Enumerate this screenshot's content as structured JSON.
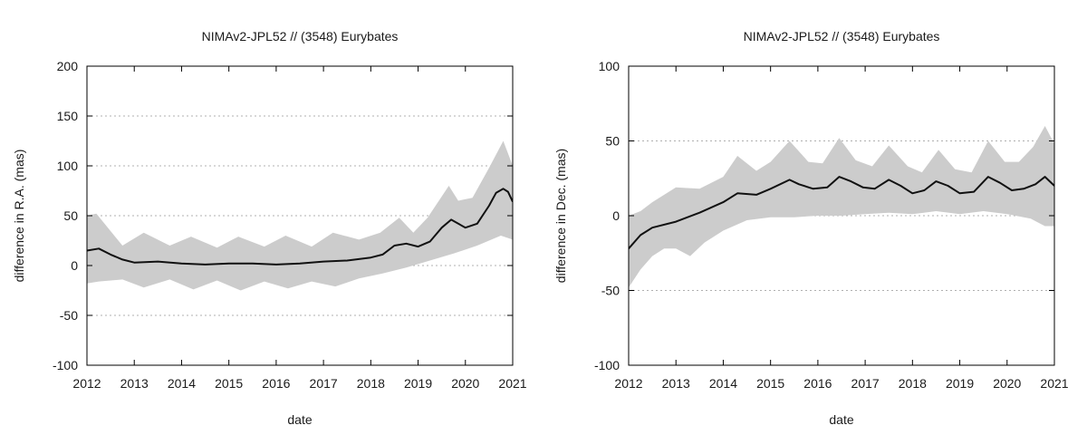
{
  "chart_data": [
    {
      "type": "area",
      "title": "NIMAv2-JPL52 // (3548) Eurybates",
      "xlabel": "date",
      "ylabel": "difference in R.A. (mas)",
      "xlim": [
        2012,
        2021
      ],
      "ylim": [
        -100,
        200
      ],
      "xticks": [
        2012,
        2013,
        2014,
        2015,
        2016,
        2017,
        2018,
        2019,
        2020,
        2021
      ],
      "yticks": [
        -100,
        -50,
        0,
        50,
        100,
        150,
        200
      ],
      "grid": "horizontal dotted",
      "legend": "none",
      "colors": {
        "band": "#cccccc",
        "line": "#111111",
        "grid": "#b0b0b0"
      },
      "series": [
        {
          "role": "line",
          "x": [
            2012.0,
            2012.25,
            2012.5,
            2012.75,
            2013.0,
            2013.5,
            2014.0,
            2014.5,
            2015.0,
            2015.5,
            2016.0,
            2016.5,
            2017.0,
            2017.5,
            2018.0,
            2018.25,
            2018.5,
            2018.75,
            2019.0,
            2019.25,
            2019.5,
            2019.7,
            2019.85,
            2020.0,
            2020.25,
            2020.5,
            2020.65,
            2020.8,
            2020.9,
            2021.0
          ],
          "y": [
            15,
            17,
            11,
            6,
            3,
            4,
            2,
            1,
            2,
            2,
            1,
            2,
            4,
            5,
            8,
            11,
            20,
            22,
            19,
            24,
            38,
            46,
            42,
            38,
            42,
            60,
            73,
            77,
            74,
            64
          ]
        },
        {
          "role": "band-upper",
          "x": [
            2012.0,
            2012.2,
            2012.75,
            2013.2,
            2013.75,
            2014.2,
            2014.75,
            2015.2,
            2015.75,
            2016.2,
            2016.75,
            2017.2,
            2017.75,
            2018.2,
            2018.6,
            2018.9,
            2019.2,
            2019.65,
            2019.85,
            2020.15,
            2020.5,
            2020.8,
            2021.0
          ],
          "y": [
            50,
            52,
            20,
            33,
            20,
            29,
            18,
            29,
            19,
            30,
            19,
            33,
            26,
            33,
            48,
            33,
            48,
            80,
            65,
            68,
            98,
            125,
            100
          ]
        },
        {
          "role": "band-lower",
          "x": [
            2012.0,
            2012.25,
            2012.75,
            2013.2,
            2013.75,
            2014.25,
            2014.75,
            2015.25,
            2015.75,
            2016.25,
            2016.75,
            2017.25,
            2017.75,
            2018.25,
            2018.75,
            2019.25,
            2019.75,
            2020.25,
            2020.75,
            2021.0
          ],
          "y": [
            -18,
            -16,
            -14,
            -22,
            -14,
            -24,
            -15,
            -25,
            -16,
            -23,
            -16,
            -21,
            -13,
            -8,
            -2,
            5,
            12,
            20,
            30,
            26
          ]
        }
      ]
    },
    {
      "type": "area",
      "title": "NIMAv2-JPL52 // (3548) Eurybates",
      "xlabel": "date",
      "ylabel": "difference in Dec. (mas)",
      "xlim": [
        2012,
        2021
      ],
      "ylim": [
        -100,
        100
      ],
      "xticks": [
        2012,
        2013,
        2014,
        2015,
        2016,
        2017,
        2018,
        2019,
        2020,
        2021
      ],
      "yticks": [
        -100,
        -50,
        0,
        50,
        100
      ],
      "grid": "horizontal dotted",
      "legend": "none",
      "colors": {
        "band": "#cccccc",
        "line": "#111111",
        "grid": "#b0b0b0"
      },
      "series": [
        {
          "role": "line",
          "x": [
            2012.0,
            2012.25,
            2012.5,
            2013.0,
            2013.5,
            2014.0,
            2014.3,
            2014.7,
            2015.0,
            2015.4,
            2015.6,
            2015.9,
            2016.2,
            2016.45,
            2016.7,
            2016.95,
            2017.2,
            2017.5,
            2017.75,
            2018.0,
            2018.25,
            2018.5,
            2018.75,
            2019.0,
            2019.3,
            2019.6,
            2019.85,
            2020.1,
            2020.35,
            2020.6,
            2020.8,
            2021.0
          ],
          "y": [
            -22,
            -13,
            -8,
            -4,
            2,
            9,
            15,
            14,
            18,
            24,
            21,
            18,
            19,
            26,
            23,
            19,
            18,
            24,
            20,
            15,
            17,
            23,
            20,
            15,
            16,
            26,
            22,
            17,
            18,
            21,
            26,
            20
          ]
        },
        {
          "role": "band-upper",
          "x": [
            2012.0,
            2012.25,
            2012.5,
            2013.0,
            2013.5,
            2014.0,
            2014.3,
            2014.7,
            2015.0,
            2015.4,
            2015.8,
            2016.1,
            2016.45,
            2016.8,
            2017.15,
            2017.5,
            2017.9,
            2018.2,
            2018.55,
            2018.9,
            2019.25,
            2019.6,
            2019.95,
            2020.25,
            2020.55,
            2020.8,
            2021.0
          ],
          "y": [
            0,
            3,
            9,
            19,
            18,
            26,
            40,
            30,
            36,
            50,
            36,
            35,
            52,
            37,
            33,
            47,
            33,
            29,
            44,
            31,
            29,
            50,
            36,
            36,
            46,
            60,
            48
          ]
        },
        {
          "role": "band-lower",
          "x": [
            2012.0,
            2012.25,
            2012.5,
            2012.75,
            2013.0,
            2013.3,
            2013.6,
            2014.0,
            2014.5,
            2015.0,
            2015.5,
            2016.0,
            2016.5,
            2017.0,
            2017.5,
            2018.0,
            2018.5,
            2019.0,
            2019.5,
            2020.0,
            2020.5,
            2020.8,
            2021.0
          ],
          "y": [
            -48,
            -36,
            -27,
            -22,
            -22,
            -27,
            -18,
            -10,
            -3,
            -1,
            -1,
            0,
            0,
            1,
            2,
            1,
            3,
            1,
            3,
            1,
            -2,
            -7,
            -7
          ]
        }
      ]
    }
  ]
}
